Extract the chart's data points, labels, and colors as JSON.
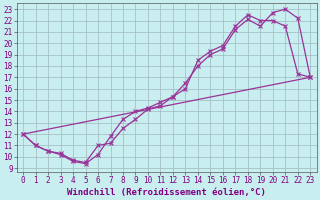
{
  "xlabel": "Windchill (Refroidissement éolien,°C)",
  "line_color": "#993399",
  "bg_color": "#c8eef0",
  "grid_color": "#9db8c0",
  "xlim": [
    -0.5,
    23.5
  ],
  "ylim": [
    8.7,
    23.5
  ],
  "xticks": [
    0,
    1,
    2,
    3,
    4,
    5,
    6,
    7,
    8,
    9,
    10,
    11,
    12,
    13,
    14,
    15,
    16,
    17,
    18,
    19,
    20,
    21,
    22,
    23
  ],
  "yticks": [
    9,
    10,
    11,
    12,
    13,
    14,
    15,
    16,
    17,
    18,
    19,
    20,
    21,
    22,
    23
  ],
  "line1_x": [
    0,
    1,
    2,
    3,
    4,
    5,
    6,
    7,
    8,
    9,
    10,
    11,
    12,
    13,
    14,
    15,
    16,
    17,
    18,
    19,
    20,
    21,
    22,
    23
  ],
  "line1_y": [
    12,
    11,
    10.5,
    10.3,
    9.7,
    9.5,
    11.0,
    11.2,
    12.5,
    13.3,
    14.2,
    14.5,
    15.3,
    16.5,
    18.0,
    19.0,
    19.5,
    21.2,
    22.1,
    21.5,
    22.7,
    23.0,
    22.2,
    17.0
  ],
  "line2_x": [
    0,
    1,
    2,
    3,
    4,
    5,
    6,
    7,
    8,
    9,
    10,
    11,
    12,
    13,
    14,
    15,
    16,
    17,
    18,
    19,
    20,
    21,
    22,
    23
  ],
  "line2_y": [
    12,
    11.0,
    10.5,
    10.2,
    9.6,
    9.4,
    10.2,
    11.8,
    13.3,
    14.0,
    14.3,
    14.8,
    15.3,
    16.0,
    18.5,
    19.3,
    19.8,
    21.5,
    22.5,
    22.0,
    22.0,
    21.5,
    17.3,
    17.0
  ],
  "line3_x": [
    0,
    23
  ],
  "line3_y": [
    12,
    17.0
  ],
  "marker": "x",
  "markersize": 3,
  "lw": 0.9,
  "fontsize_label": 6.5,
  "fontsize_tick": 5.5
}
